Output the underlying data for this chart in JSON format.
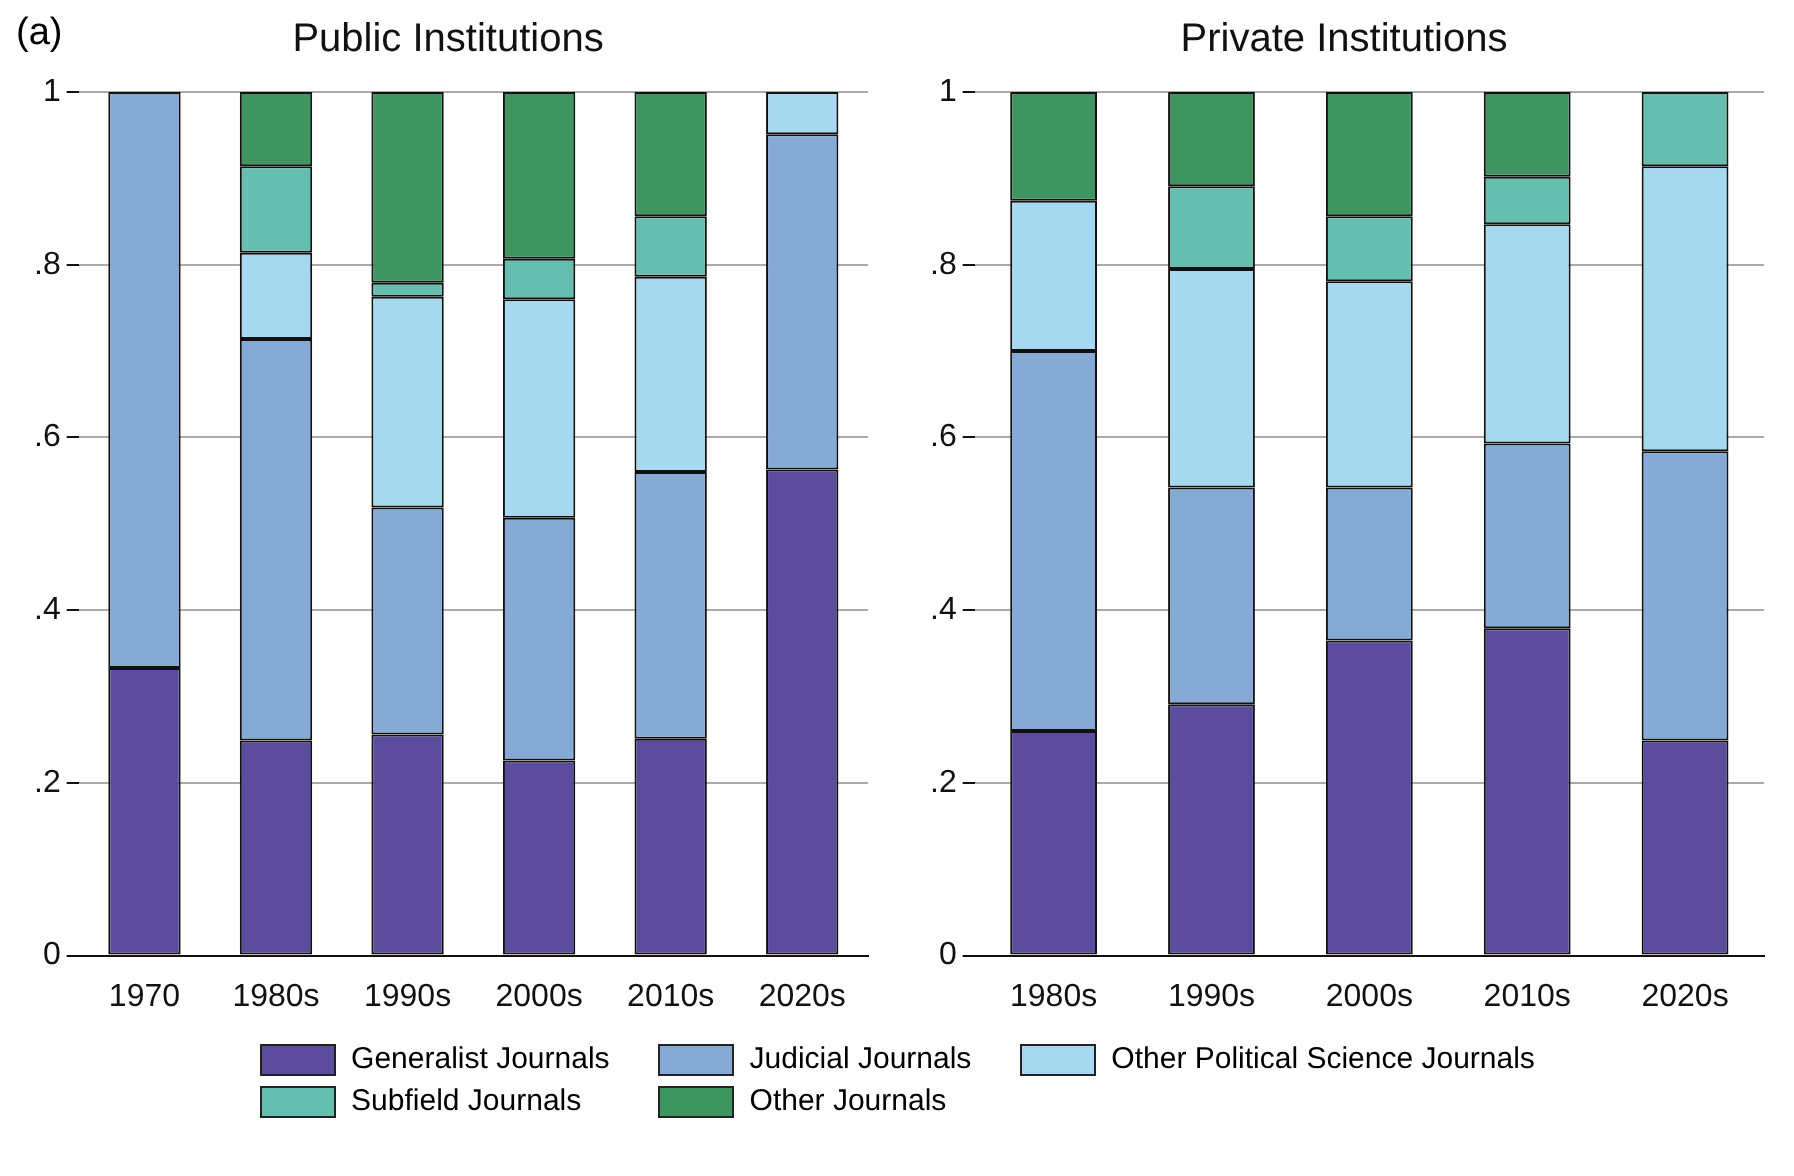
{
  "chart_data": [
    {
      "type": "bar",
      "title": "Public Institutions",
      "stacked": true,
      "grid": "y",
      "legend": "bottom",
      "annotations": [
        "(a)"
      ],
      "categories": [
        "1970",
        "1980s",
        "1990s",
        "2000s",
        "2010s",
        "2020s"
      ],
      "ylim": [
        0,
        1
      ],
      "yticks": [
        {
          "value": 0,
          "label": "0"
        },
        {
          "value": 0.2,
          "label": ".2"
        },
        {
          "value": 0.4,
          "label": ".4"
        },
        {
          "value": 0.6,
          "label": ".6"
        },
        {
          "value": 0.8,
          "label": ".8"
        },
        {
          "value": 1,
          "label": "1"
        }
      ],
      "series": [
        {
          "name": "Generalist Journals",
          "color": "#5b4c9e",
          "values": [
            0.333,
            0.249,
            0.256,
            0.226,
            0.251,
            0.563
          ]
        },
        {
          "name": "Judicial Journals",
          "color": "#87a9d6",
          "values": [
            0.667,
            0.465,
            0.263,
            0.281,
            0.309,
            0.388
          ]
        },
        {
          "name": "Other Political Science Journals",
          "color": "#a6d8f0",
          "values": [
            0,
            0.1,
            0.244,
            0.253,
            0.226,
            0.049
          ]
        },
        {
          "name": "Subfield Journals",
          "color": "#66bfae",
          "values": [
            0,
            0.1,
            0.016,
            0.047,
            0.07,
            0
          ]
        },
        {
          "name": "Other Journals",
          "color": "#3f9560",
          "values": [
            0,
            0.086,
            0.221,
            0.193,
            0.144,
            0
          ]
        }
      ]
    },
    {
      "type": "bar",
      "title": "Private Institutions",
      "stacked": true,
      "grid": "y",
      "categories": [
        "1980s",
        "1990s",
        "2000s",
        "2010s",
        "2020s"
      ],
      "ylim": [
        0,
        1
      ],
      "yticks": [
        {
          "value": 0,
          "label": "0"
        },
        {
          "value": 0.2,
          "label": ".2"
        },
        {
          "value": 0.4,
          "label": ".4"
        },
        {
          "value": 0.6,
          "label": ".6"
        },
        {
          "value": 0.8,
          "label": ".8"
        },
        {
          "value": 1,
          "label": "1"
        }
      ],
      "series": [
        {
          "name": "Generalist Journals",
          "color": "#5b4c9e",
          "values": [
            0.26,
            0.291,
            0.365,
            0.379,
            0.249
          ]
        },
        {
          "name": "Judicial Journals",
          "color": "#87a9d6",
          "values": [
            0.44,
            0.251,
            0.177,
            0.214,
            0.335
          ]
        },
        {
          "name": "Other Political Science Journals",
          "color": "#a6d8f0",
          "values": [
            0.174,
            0.253,
            0.239,
            0.254,
            0.33
          ]
        },
        {
          "name": "Subfield Journals",
          "color": "#66bfae",
          "values": [
            0,
            0.096,
            0.075,
            0.055,
            0.086
          ]
        },
        {
          "name": "Other Journals",
          "color": "#3f9560",
          "values": [
            0.126,
            0.109,
            0.144,
            0.098,
            0
          ]
        }
      ]
    }
  ]
}
